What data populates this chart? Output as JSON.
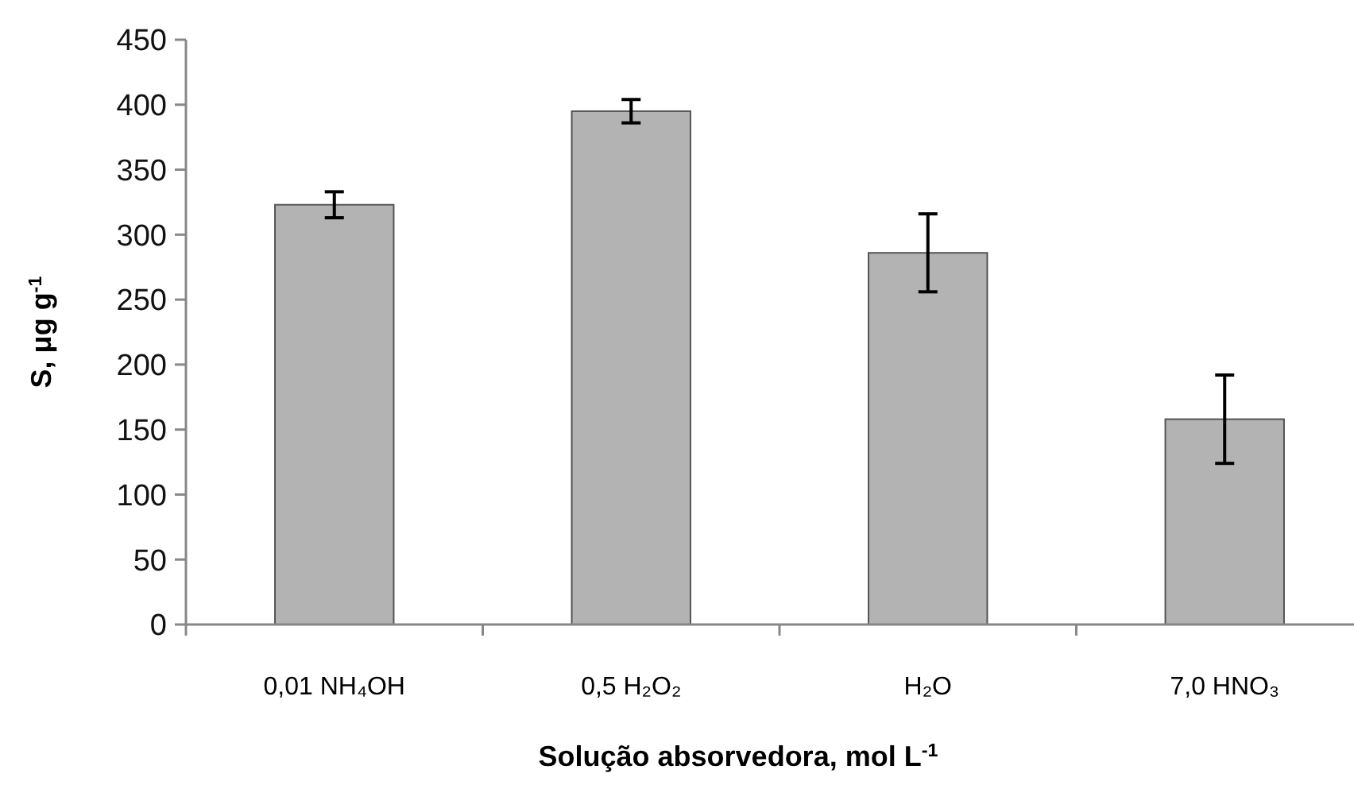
{
  "chart_data": {
    "type": "bar",
    "xlabel": "Solução absorvedora, mol L$^{-1}$",
    "ylabel": "S, μg g$^{-1}$",
    "categories": [
      "0,01 NH₄OH",
      "0,5 H₂O₂",
      "H₂O",
      "7,0 HNO₃"
    ],
    "values": [
      323,
      395,
      286,
      158
    ],
    "errors": [
      10,
      9,
      30,
      34
    ],
    "color": "#b3b3b3",
    "ylim": [
      0,
      450
    ],
    "yticks": [
      0,
      50,
      100,
      150,
      200,
      250,
      300,
      350,
      400,
      450
    ],
    "grid": false
  }
}
